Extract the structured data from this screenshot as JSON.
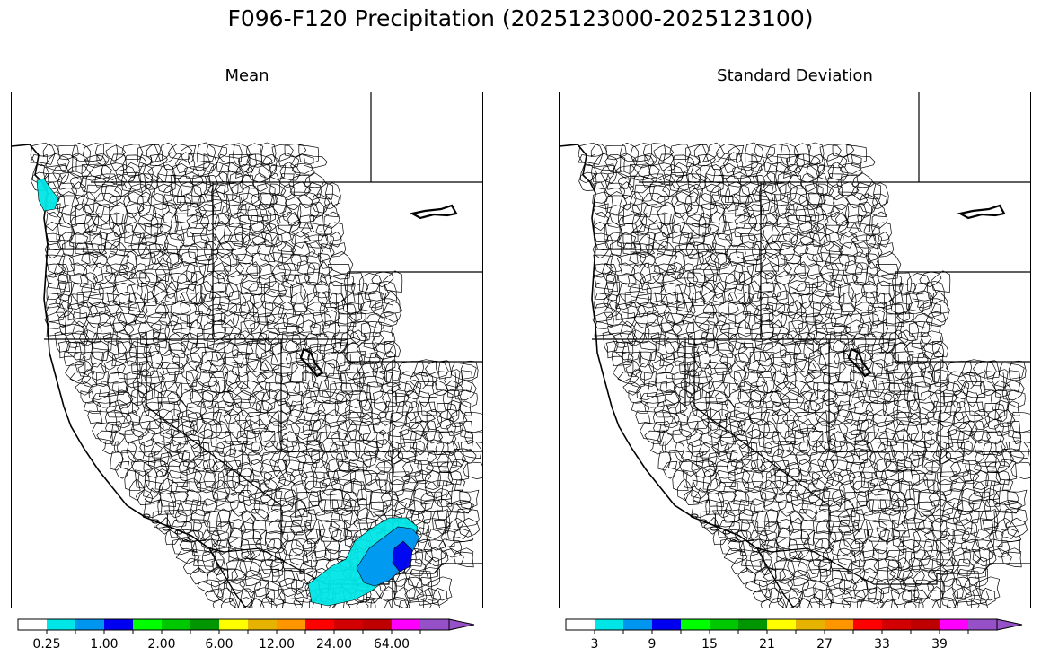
{
  "title": "F096-F120 Precipitation (2025123000-2025123100)",
  "panels": [
    {
      "title": "Mean",
      "colorbar": {
        "colors": [
          "#ffffff",
          "#00e6e6",
          "#0096f0",
          "#0000f0",
          "#00ff00",
          "#00c800",
          "#009600",
          "#ffff00",
          "#e6b400",
          "#ff9600",
          "#ff0000",
          "#d20000",
          "#be0000",
          "#ff00ff",
          "#9650c8"
        ],
        "tick_labels": [
          "0.25",
          "1.00",
          "2.00",
          "6.00",
          "12.00",
          "24.00",
          "64.00"
        ],
        "extend": "max"
      },
      "regions": [
        {
          "name": "Olympic Peninsula",
          "level": "0.25-0.50"
        },
        {
          "name": "Southern Arizona",
          "level": "0.25-2.00"
        }
      ]
    },
    {
      "title": "Standard Deviation",
      "colorbar": {
        "colors": [
          "#ffffff",
          "#00e6e6",
          "#0096f0",
          "#0000f0",
          "#00ff00",
          "#00c800",
          "#009600",
          "#ffff00",
          "#e6b400",
          "#ff9600",
          "#ff0000",
          "#d20000",
          "#be0000",
          "#ff00ff",
          "#9650c8"
        ],
        "tick_labels": [
          "3",
          "9",
          "15",
          "21",
          "27",
          "33",
          "39"
        ],
        "extend": "max"
      },
      "regions": []
    }
  ]
}
